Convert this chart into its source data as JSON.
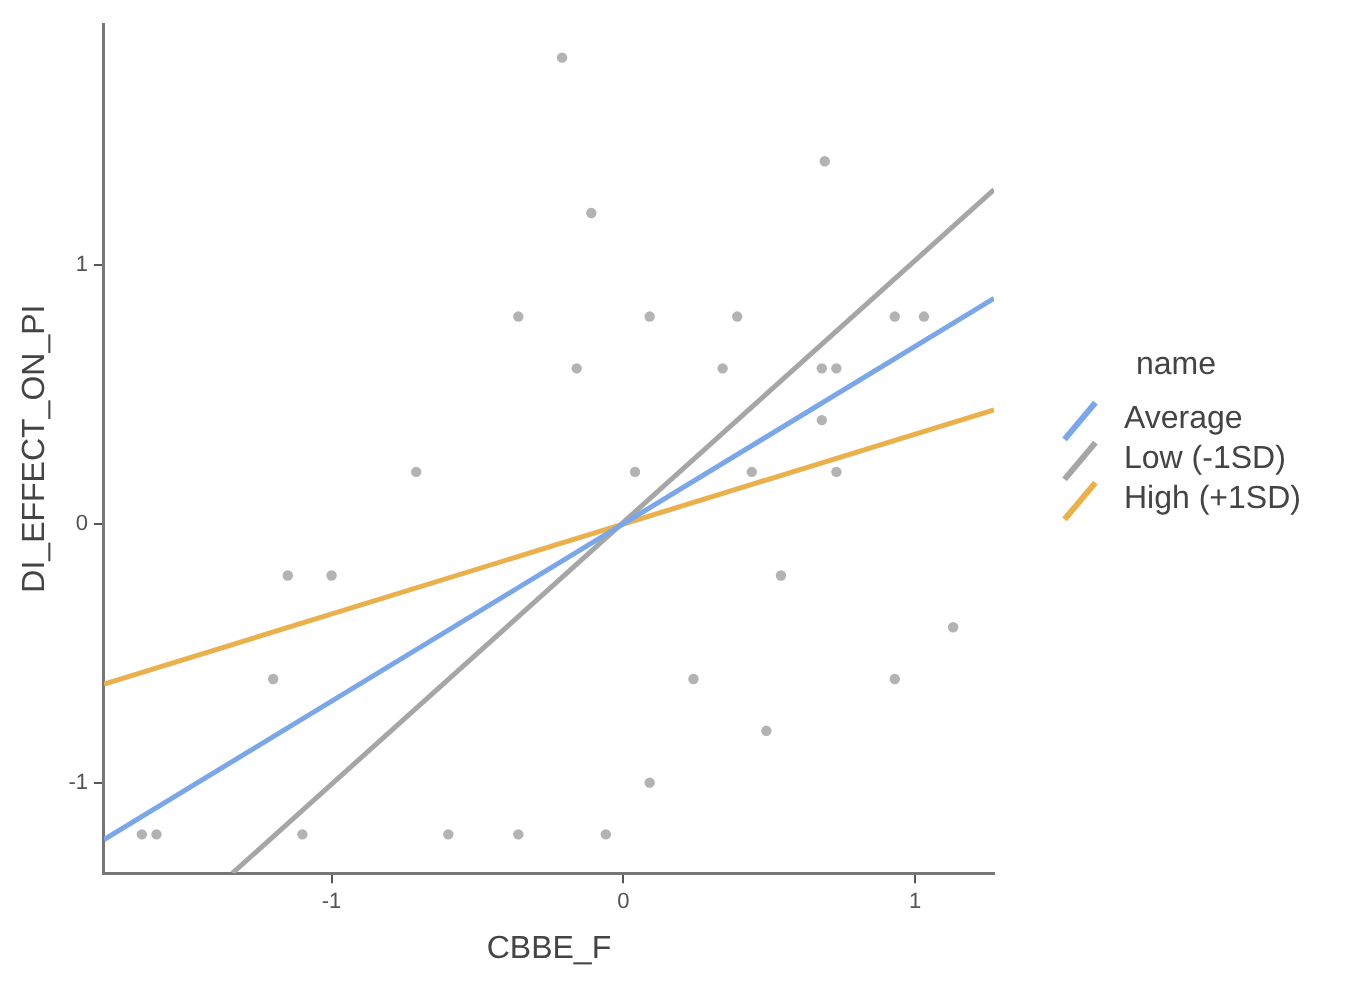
{
  "chart_data": {
    "type": "scatter",
    "xlabel": "CBBE_F",
    "ylabel": "DI_EFFECT_ON_PI",
    "xlim": [
      -1.78,
      1.27
    ],
    "ylim": [
      -1.35,
      1.93
    ],
    "xticks": [
      -1,
      0,
      1
    ],
    "yticks": [
      -1,
      0,
      1
    ],
    "legend": "right",
    "legend_title": "name",
    "series": [
      {
        "type": "scatter",
        "color": "#b3b3b3",
        "x": [
          -0.21,
          0.69,
          -0.11,
          -0.36,
          0.09,
          0.39,
          0.93,
          1.03,
          -0.16,
          0.34,
          0.68,
          0.73,
          0.68,
          -0.71,
          0.04,
          0.44,
          0.73,
          -1.15,
          -1.0,
          0.54,
          1.13,
          -1.2,
          0.24,
          0.93,
          0.49,
          0.09,
          -1.65,
          -1.6,
          -1.1,
          -0.6,
          -0.36,
          -0.06
        ],
        "values": [
          1.8,
          1.4,
          1.2,
          0.8,
          0.8,
          0.8,
          0.8,
          0.8,
          0.6,
          0.6,
          0.6,
          0.6,
          0.4,
          0.2,
          0.2,
          0.2,
          0.2,
          -0.2,
          -0.2,
          -0.2,
          -0.4,
          -0.6,
          -0.6,
          -0.6,
          -0.8,
          -1.0,
          -1.2,
          -1.2,
          -1.2,
          -1.2,
          -1.2,
          -1.2
        ]
      },
      {
        "type": "line",
        "name": "Average",
        "color": "#7ba7e9",
        "x": [
          -1.78,
          1.27
        ],
        "values": [
          -1.22,
          0.87
        ]
      },
      {
        "type": "line",
        "name": "Low (-1SD)",
        "color": "#a6a6a6",
        "x": [
          -1.34,
          1.27
        ],
        "values": [
          -1.35,
          1.29
        ]
      },
      {
        "type": "line",
        "name": "High (+1SD)",
        "color": "#e9b04b",
        "x": [
          -1.78,
          1.27
        ],
        "values": [
          -0.62,
          0.44
        ]
      }
    ]
  }
}
